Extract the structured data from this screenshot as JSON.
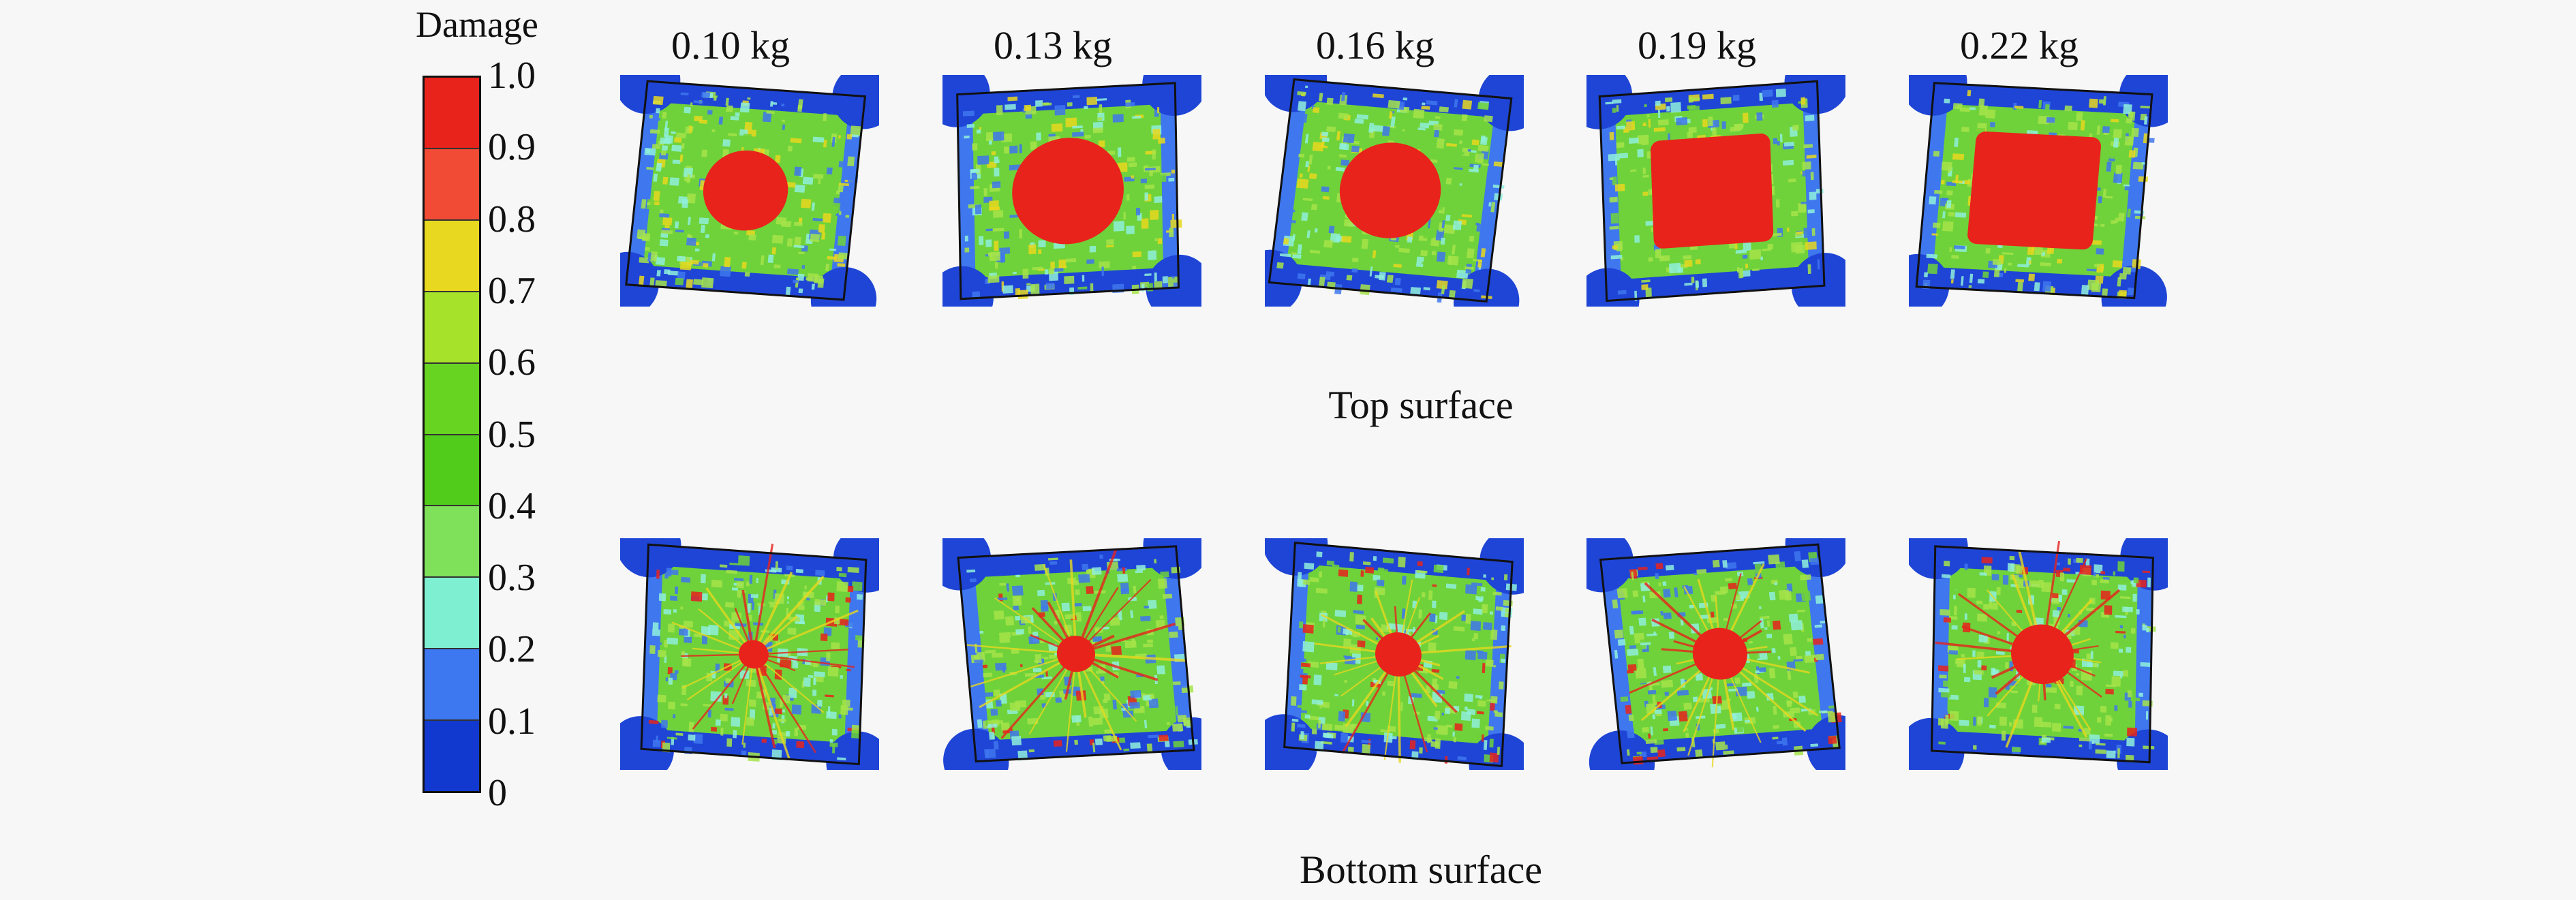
{
  "legend": {
    "title": "Damage",
    "ticks": [
      "1.0",
      "0.9",
      "0.8",
      "0.7",
      "0.6",
      "0.5",
      "0.4",
      "0.3",
      "0.2",
      "0.1",
      "0"
    ],
    "colors": [
      "#e8231c",
      "#f24b35",
      "#e8d81f",
      "#a7e22a",
      "#66d421",
      "#52cc1a",
      "#7fe05a",
      "#7fefd2",
      "#3d78f0",
      "#1239cf"
    ]
  },
  "columns": [
    "0.10 kg",
    "0.13 kg",
    "0.16 kg",
    "0.19 kg",
    "0.22 kg"
  ],
  "rows": [
    "Top surface",
    "Bottom surface"
  ],
  "palette": {
    "green": "#6fd23a",
    "light_green": "#a6e44a",
    "cyan": "#8ff0dc",
    "blue": "#1f45d6",
    "mid_blue": "#3f77ee",
    "red": "#e8231c",
    "yellow": "#e8d81f",
    "edge": "#111111"
  }
}
